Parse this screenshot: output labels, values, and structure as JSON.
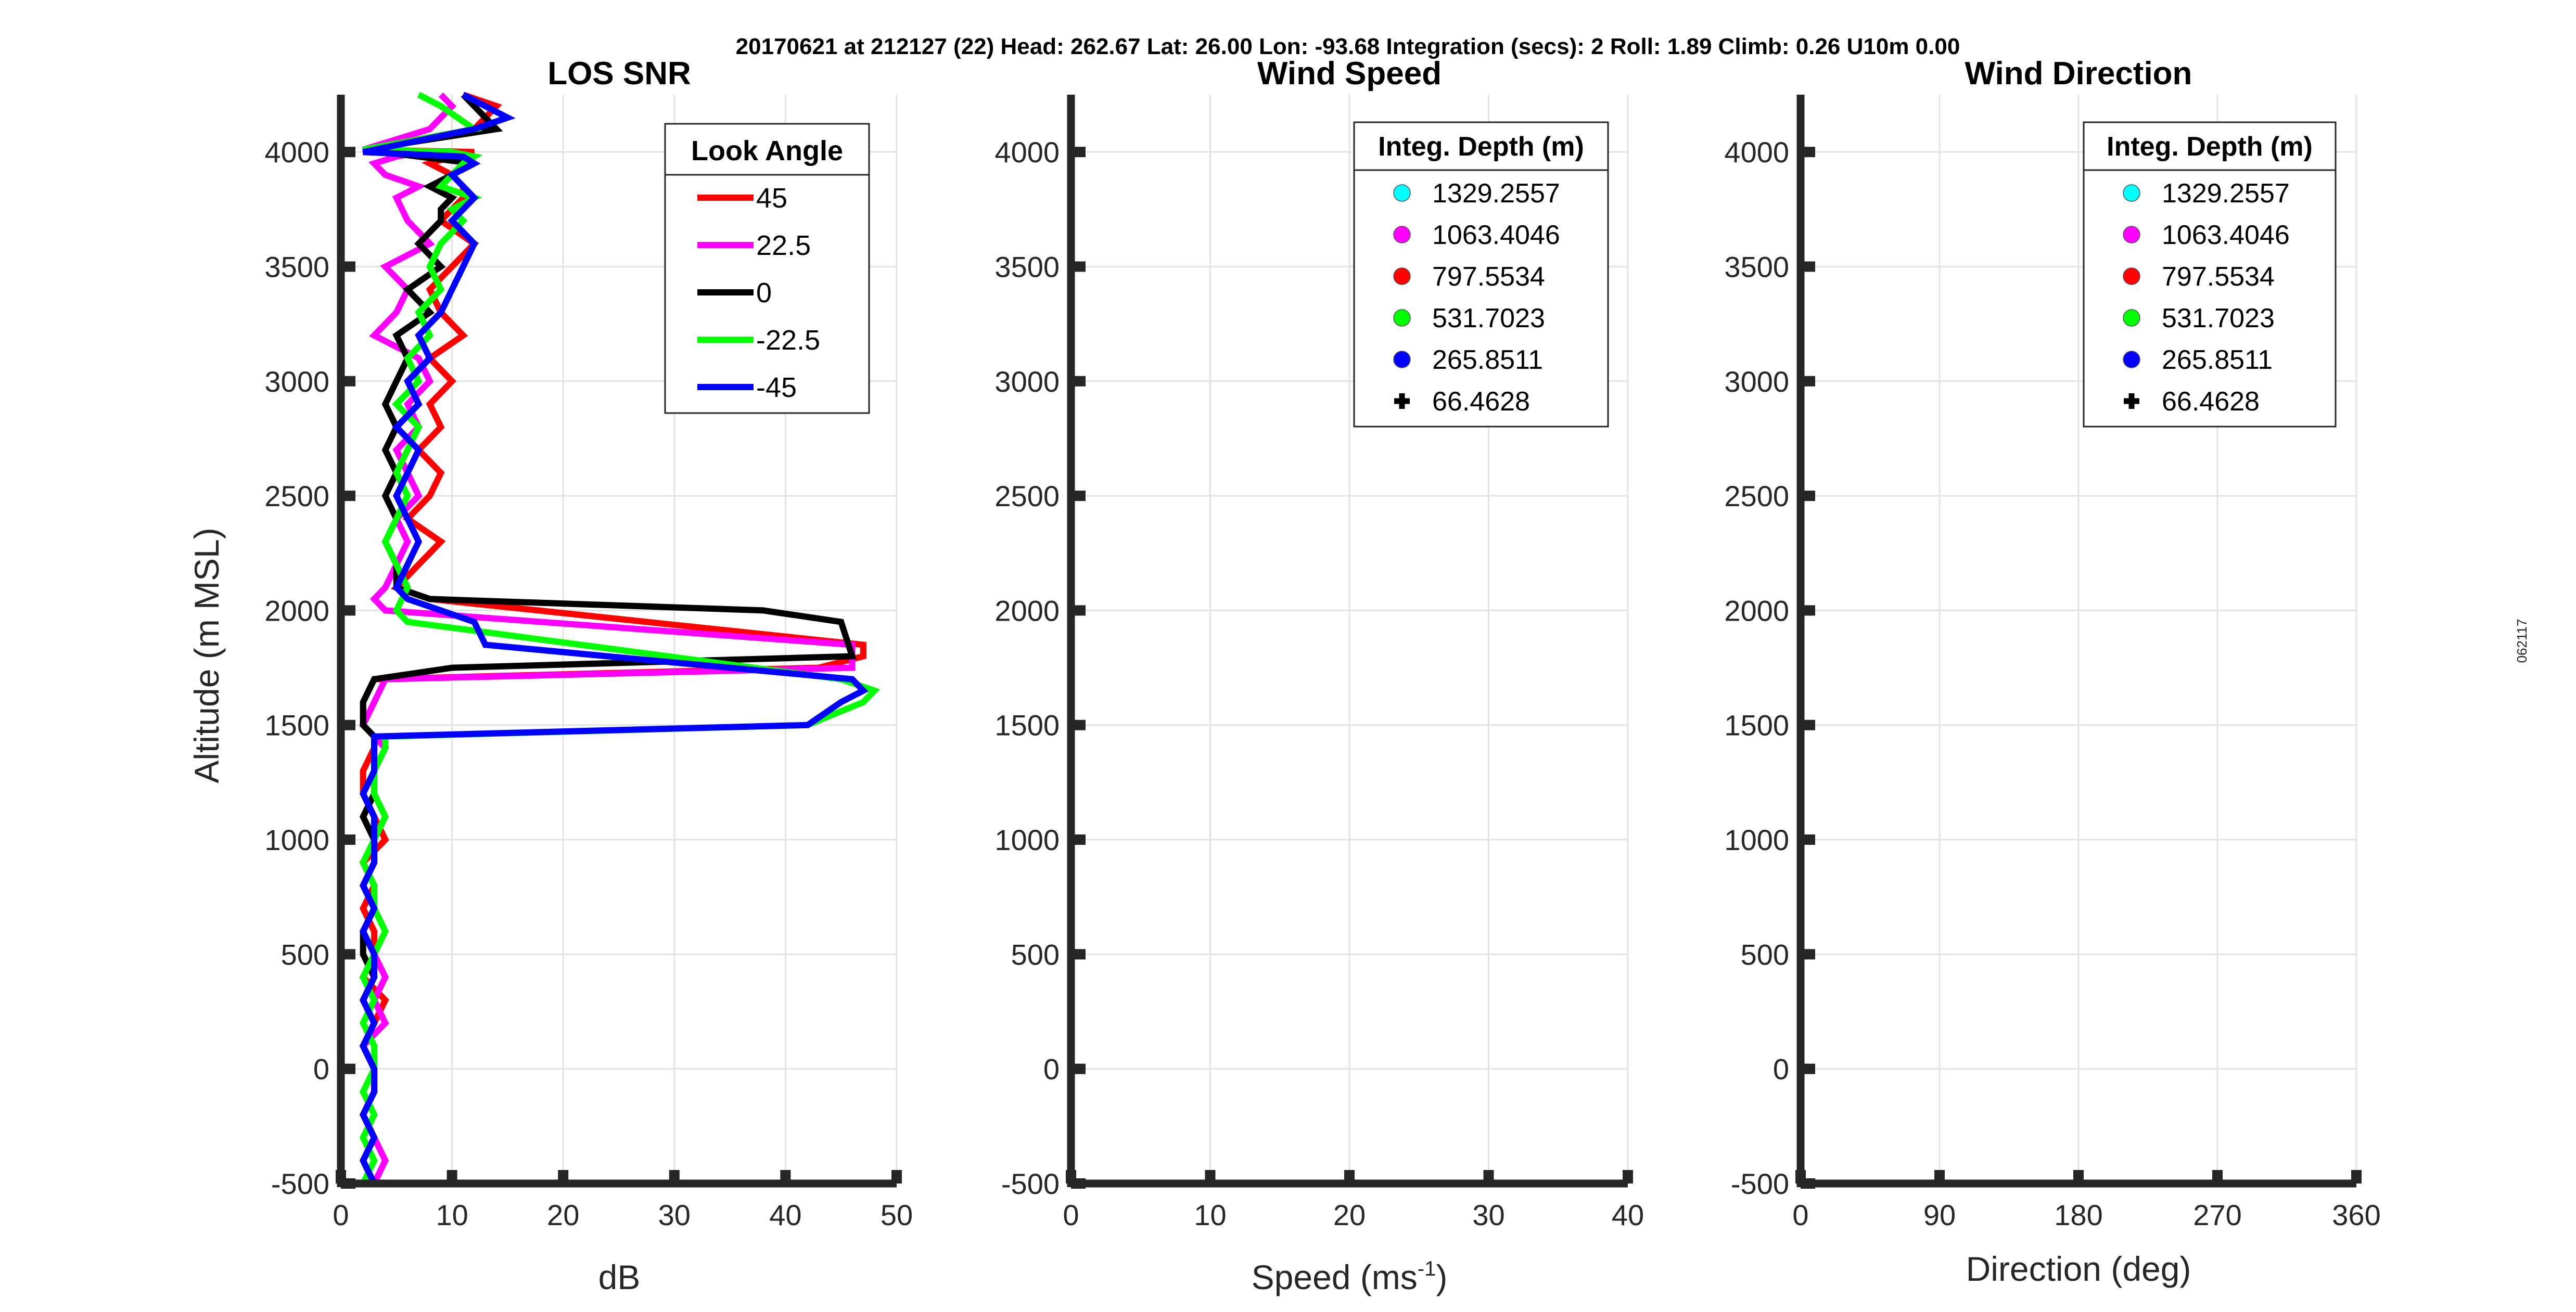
{
  "suptitle": "20170621 at 212127 (22)  Head: 262.67  Lat: 26.00  Lon: -93.68  Integration (secs): 2  Roll: 1.89  Climb: 0.26  U10m 0.00",
  "side_label": "062117",
  "chart_data": [
    {
      "type": "line",
      "title": "LOS SNR",
      "xlabel": "dB",
      "ylabel": "Altitude (m MSL)",
      "xlim": [
        0,
        50
      ],
      "ylim": [
        -500,
        4250
      ],
      "xticks": [
        0,
        10,
        20,
        30,
        40,
        50
      ],
      "yticks": [
        -500,
        0,
        500,
        1000,
        1500,
        2000,
        2500,
        3000,
        3500,
        4000
      ],
      "grid": true,
      "legend": {
        "title": "Look Angle",
        "placement": "top-right"
      },
      "series": [
        {
          "name": "45",
          "color": "#ff0000",
          "x": [
            3,
            2,
            3,
            2,
            3,
            3,
            2,
            3,
            4,
            2,
            3,
            3,
            2,
            3,
            2,
            4,
            3,
            2,
            2,
            3,
            3,
            2,
            2,
            3,
            43,
            47,
            47,
            8,
            5,
            7,
            9,
            6,
            8,
            9,
            7,
            9,
            8,
            10,
            8,
            11,
            9,
            8,
            10,
            12,
            9,
            11,
            11,
            10,
            8,
            10,
            12,
            2,
            12,
            14,
            11
          ],
          "y": [
            -500,
            -400,
            -300,
            -200,
            -100,
            0,
            100,
            200,
            300,
            400,
            500,
            600,
            700,
            800,
            900,
            1000,
            1100,
            1200,
            1300,
            1400,
            1450,
            1500,
            1600,
            1700,
            1750,
            1800,
            1850,
            2050,
            2100,
            2200,
            2300,
            2400,
            2500,
            2600,
            2700,
            2800,
            2900,
            3000,
            3100,
            3200,
            3300,
            3400,
            3500,
            3600,
            3700,
            3800,
            3850,
            3900,
            3950,
            3980,
            4000,
            4010,
            4100,
            4200,
            4250
          ]
        },
        {
          "name": "22.5",
          "color": "#ff00ff",
          "x": [
            3,
            4,
            3,
            2,
            3,
            3,
            2,
            4,
            3,
            4,
            3,
            2,
            3,
            2,
            3,
            3,
            2,
            3,
            3,
            4,
            3,
            2,
            3,
            4,
            46,
            46,
            4,
            3,
            4,
            5,
            6,
            5,
            7,
            6,
            5,
            7,
            6,
            8,
            7,
            3,
            5,
            6,
            4,
            8,
            6,
            5,
            7,
            4,
            3,
            5,
            7,
            2,
            8,
            10,
            9
          ],
          "y": [
            -500,
            -400,
            -300,
            -200,
            -100,
            0,
            100,
            200,
            300,
            400,
            500,
            600,
            700,
            800,
            900,
            1000,
            1100,
            1200,
            1300,
            1400,
            1450,
            1500,
            1600,
            1700,
            1750,
            1850,
            2000,
            2050,
            2100,
            2200,
            2300,
            2400,
            2500,
            2600,
            2700,
            2800,
            2900,
            3000,
            3100,
            3200,
            3300,
            3400,
            3500,
            3600,
            3700,
            3800,
            3850,
            3900,
            3950,
            3980,
            4000,
            4010,
            4100,
            4200,
            4250
          ]
        },
        {
          "name": "0",
          "color": "#000000",
          "x": [
            3,
            2,
            3,
            2,
            3,
            3,
            2,
            3,
            2,
            3,
            2,
            2,
            3,
            2,
            3,
            3,
            2,
            3,
            3,
            3,
            3,
            2,
            2,
            3,
            10,
            46,
            45,
            38,
            8,
            5,
            5,
            4,
            5,
            4,
            5,
            4,
            5,
            4,
            5,
            6,
            5,
            8,
            6,
            9,
            7,
            9,
            9,
            10,
            8,
            10,
            12,
            2,
            14,
            12,
            11
          ],
          "y": [
            -500,
            -400,
            -300,
            -200,
            -100,
            0,
            100,
            200,
            300,
            400,
            500,
            600,
            700,
            800,
            900,
            1000,
            1100,
            1200,
            1300,
            1400,
            1450,
            1500,
            1600,
            1700,
            1750,
            1800,
            1950,
            2000,
            2050,
            2100,
            2200,
            2300,
            2400,
            2500,
            2600,
            2700,
            2800,
            2900,
            3000,
            3100,
            3200,
            3300,
            3400,
            3500,
            3600,
            3700,
            3750,
            3800,
            3850,
            3900,
            3950,
            4010,
            4100,
            4200,
            4250
          ]
        },
        {
          "name": "-22.5",
          "color": "#00ff00",
          "x": [
            2,
            3,
            2,
            3,
            2,
            3,
            3,
            2,
            3,
            2,
            3,
            4,
            3,
            3,
            2,
            3,
            4,
            3,
            3,
            4,
            4,
            42,
            47,
            48,
            45,
            6,
            5,
            6,
            5,
            4,
            5,
            6,
            5,
            6,
            7,
            5,
            7,
            6,
            8,
            7,
            9,
            8,
            9,
            11,
            10,
            12,
            9,
            10,
            11,
            12,
            10,
            2,
            12,
            9,
            7
          ],
          "y": [
            -500,
            -400,
            -300,
            -200,
            -100,
            0,
            100,
            200,
            300,
            400,
            500,
            600,
            700,
            800,
            900,
            1000,
            1100,
            1200,
            1300,
            1400,
            1450,
            1500,
            1600,
            1650,
            1700,
            1950,
            2000,
            2100,
            2200,
            2300,
            2400,
            2500,
            2600,
            2700,
            2800,
            2900,
            3000,
            3100,
            3200,
            3300,
            3400,
            3500,
            3600,
            3700,
            3750,
            3800,
            3850,
            3900,
            3950,
            3980,
            4000,
            4010,
            4100,
            4200,
            4250
          ]
        },
        {
          "name": "-45",
          "color": "#0000ff",
          "x": [
            3,
            2,
            3,
            2,
            3,
            3,
            2,
            3,
            2,
            3,
            3,
            2,
            3,
            2,
            3,
            3,
            3,
            2,
            3,
            3,
            3,
            42,
            45,
            47,
            46,
            13,
            12,
            6,
            5,
            6,
            7,
            6,
            5,
            6,
            7,
            5,
            7,
            6,
            8,
            7,
            9,
            10,
            11,
            12,
            10,
            11,
            12,
            11,
            10,
            12,
            11,
            2,
            12,
            15,
            11
          ],
          "y": [
            -500,
            -400,
            -300,
            -200,
            -100,
            0,
            100,
            200,
            300,
            400,
            500,
            600,
            700,
            800,
            900,
            1000,
            1100,
            1200,
            1300,
            1400,
            1450,
            1500,
            1600,
            1650,
            1700,
            1850,
            1950,
            2050,
            2100,
            2200,
            2300,
            2400,
            2500,
            2600,
            2700,
            2800,
            2900,
            3000,
            3100,
            3200,
            3300,
            3400,
            3500,
            3600,
            3700,
            3750,
            3800,
            3850,
            3900,
            3950,
            3980,
            4000,
            4100,
            4150,
            4250
          ]
        }
      ]
    },
    {
      "type": "scatter",
      "title": "Wind Speed",
      "xlabel": "Speed (ms",
      "xlabel_sup": "-1",
      "xlabel_end": ")",
      "xlim": [
        0,
        40
      ],
      "ylim": [
        -500,
        4250
      ],
      "xticks": [
        0,
        10,
        20,
        30,
        40
      ],
      "yticks": [
        -500,
        0,
        500,
        1000,
        1500,
        2000,
        2500,
        3000,
        3500,
        4000
      ],
      "grid": true,
      "legend": {
        "title": "Integ. Depth (m)",
        "placement": "top-right",
        "entries": [
          {
            "label": "1329.2557",
            "color": "#00ffff",
            "marker": "circle"
          },
          {
            "label": "1063.4046",
            "color": "#ff00ff",
            "marker": "circle"
          },
          {
            "label": "797.5534",
            "color": "#ff0000",
            "marker": "circle"
          },
          {
            "label": "531.7023",
            "color": "#00ff00",
            "marker": "circle"
          },
          {
            "label": "265.8511",
            "color": "#0000ff",
            "marker": "circle"
          },
          {
            "label": "66.4628",
            "color": "#000000",
            "marker": "plus"
          }
        ]
      },
      "series": []
    },
    {
      "type": "scatter",
      "title": "Wind Direction",
      "xlabel": "Direction (deg)",
      "xlim": [
        0,
        360
      ],
      "ylim": [
        -500,
        4250
      ],
      "xticks": [
        0,
        90,
        180,
        270,
        360
      ],
      "yticks": [
        -500,
        0,
        500,
        1000,
        1500,
        2000,
        2500,
        3000,
        3500,
        4000
      ],
      "grid": true,
      "legend": {
        "title": "Integ. Depth (m)",
        "placement": "top-right",
        "entries": [
          {
            "label": "1329.2557",
            "color": "#00ffff",
            "marker": "circle"
          },
          {
            "label": "1063.4046",
            "color": "#ff00ff",
            "marker": "circle"
          },
          {
            "label": "797.5534",
            "color": "#ff0000",
            "marker": "circle"
          },
          {
            "label": "531.7023",
            "color": "#00ff00",
            "marker": "circle"
          },
          {
            "label": "265.8511",
            "color": "#0000ff",
            "marker": "circle"
          },
          {
            "label": "66.4628",
            "color": "#000000",
            "marker": "plus"
          }
        ]
      },
      "series": []
    }
  ]
}
